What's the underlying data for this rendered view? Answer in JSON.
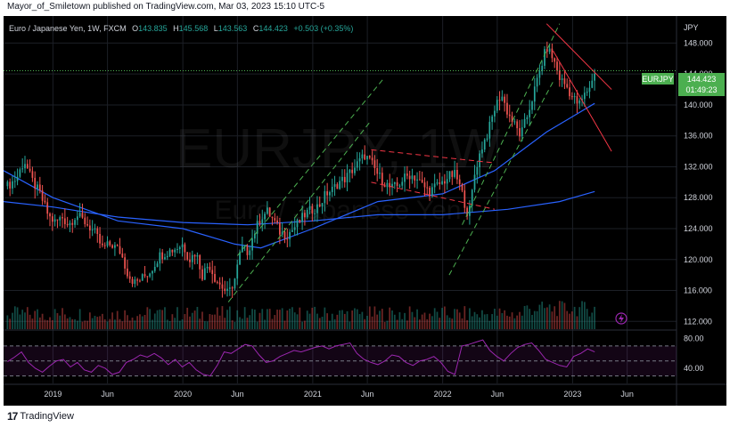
{
  "header": {
    "publisher": "Mayor_of_Smiletown published on TradingView.com, Mar 03, 2023 15:10 UTC-5"
  },
  "symbol_bar": {
    "name": "Euro / Japanese Yen, 1W, FXCM",
    "open_label": "O",
    "open": "143.835",
    "high_label": "H",
    "high": "145.568",
    "low_label": "L",
    "low": "143.563",
    "close_label": "C",
    "close": "144.423",
    "change": "+0.503 (+0.35%)"
  },
  "watermark": {
    "ticker": "EURJPY, 1W",
    "name": "Euro / Japanese Yen"
  },
  "price_badge": {
    "symbol": "EURJPY",
    "price": "144.423",
    "countdown": "01:49:23"
  },
  "footer": {
    "logo": "17",
    "brand": "TradingView"
  },
  "colors": {
    "up": "#26a69a",
    "down": "#ef5350",
    "ma": "#2962ff",
    "rsi": "#9c27b0",
    "channel_up": "#4caf50",
    "channel_down": "#f23645",
    "badge": "#4caf50"
  },
  "chart_data": {
    "type": "candlestick",
    "price_axis_label": "JPY",
    "y_ticks": [
      "148.000",
      "144.000",
      "140.000",
      "136.000",
      "132.000",
      "128.000",
      "124.000",
      "120.000",
      "116.000",
      "112.000"
    ],
    "ylim": [
      111,
      151.5
    ],
    "x_ticks": [
      {
        "label": "2019",
        "t": 2019.0
      },
      {
        "label": "Jun",
        "t": 2019.42
      },
      {
        "label": "2020",
        "t": 2020.0
      },
      {
        "label": "Jun",
        "t": 2020.42
      },
      {
        "label": "2021",
        "t": 2021.0
      },
      {
        "label": "Jun",
        "t": 2021.42
      },
      {
        "label": "2022",
        "t": 2022.0
      },
      {
        "label": "Jun",
        "t": 2022.42
      },
      {
        "label": "2023",
        "t": 2023.0
      },
      {
        "label": "Jun",
        "t": 2023.42
      }
    ],
    "xlim": [
      2018.62,
      2023.8
    ],
    "weekly_closes": [
      {
        "t": 2018.65,
        "close": 129.5
      },
      {
        "t": 2018.72,
        "close": 130.5
      },
      {
        "t": 2018.78,
        "close": 132.8
      },
      {
        "t": 2018.83,
        "close": 130.5
      },
      {
        "t": 2018.9,
        "close": 128.5
      },
      {
        "t": 2018.97,
        "close": 125.5
      },
      {
        "t": 2019.02,
        "close": 124.8
      },
      {
        "t": 2019.07,
        "close": 125.5
      },
      {
        "t": 2019.12,
        "close": 124.5
      },
      {
        "t": 2019.18,
        "close": 125.8
      },
      {
        "t": 2019.25,
        "close": 124.8
      },
      {
        "t": 2019.32,
        "close": 123.5
      },
      {
        "t": 2019.38,
        "close": 121.5
      },
      {
        "t": 2019.45,
        "close": 122.0
      },
      {
        "t": 2019.52,
        "close": 121.0
      },
      {
        "t": 2019.58,
        "close": 118.0
      },
      {
        "t": 2019.63,
        "close": 117.0
      },
      {
        "t": 2019.68,
        "close": 117.5
      },
      {
        "t": 2019.75,
        "close": 118.5
      },
      {
        "t": 2019.82,
        "close": 120.5
      },
      {
        "t": 2019.88,
        "close": 121.0
      },
      {
        "t": 2019.95,
        "close": 121.5
      },
      {
        "t": 2020.0,
        "close": 122.0
      },
      {
        "t": 2020.05,
        "close": 120.0
      },
      {
        "t": 2020.1,
        "close": 121.0
      },
      {
        "t": 2020.15,
        "close": 118.0
      },
      {
        "t": 2020.2,
        "close": 119.5
      },
      {
        "t": 2020.25,
        "close": 117.5
      },
      {
        "t": 2020.3,
        "close": 116.5
      },
      {
        "t": 2020.35,
        "close": 115.5
      },
      {
        "t": 2020.4,
        "close": 117.5
      },
      {
        "t": 2020.45,
        "close": 121.5
      },
      {
        "t": 2020.5,
        "close": 121.0
      },
      {
        "t": 2020.55,
        "close": 123.5
      },
      {
        "t": 2020.6,
        "close": 125.5
      },
      {
        "t": 2020.65,
        "close": 126.2
      },
      {
        "t": 2020.7,
        "close": 125.0
      },
      {
        "t": 2020.75,
        "close": 123.5
      },
      {
        "t": 2020.8,
        "close": 123.2
      },
      {
        "t": 2020.85,
        "close": 124.0
      },
      {
        "t": 2020.9,
        "close": 125.0
      },
      {
        "t": 2020.95,
        "close": 126.0
      },
      {
        "t": 2021.0,
        "close": 126.5
      },
      {
        "t": 2021.05,
        "close": 127.0
      },
      {
        "t": 2021.1,
        "close": 128.5
      },
      {
        "t": 2021.15,
        "close": 129.0
      },
      {
        "t": 2021.2,
        "close": 130.0
      },
      {
        "t": 2021.25,
        "close": 130.5
      },
      {
        "t": 2021.3,
        "close": 131.5
      },
      {
        "t": 2021.35,
        "close": 132.5
      },
      {
        "t": 2021.4,
        "close": 133.5
      },
      {
        "t": 2021.45,
        "close": 132.5
      },
      {
        "t": 2021.5,
        "close": 131.0
      },
      {
        "t": 2021.55,
        "close": 130.0
      },
      {
        "t": 2021.6,
        "close": 129.2
      },
      {
        "t": 2021.65,
        "close": 129.5
      },
      {
        "t": 2021.7,
        "close": 130.5
      },
      {
        "t": 2021.75,
        "close": 131.0
      },
      {
        "t": 2021.8,
        "close": 130.5
      },
      {
        "t": 2021.85,
        "close": 129.5
      },
      {
        "t": 2021.9,
        "close": 128.8
      },
      {
        "t": 2021.95,
        "close": 129.5
      },
      {
        "t": 2022.0,
        "close": 130.0
      },
      {
        "t": 2022.05,
        "close": 130.8
      },
      {
        "t": 2022.1,
        "close": 131.0
      },
      {
        "t": 2022.15,
        "close": 128.5
      },
      {
        "t": 2022.2,
        "close": 125.5
      },
      {
        "t": 2022.25,
        "close": 131.5
      },
      {
        "t": 2022.3,
        "close": 134.5
      },
      {
        "t": 2022.35,
        "close": 136.5
      },
      {
        "t": 2022.4,
        "close": 139.5
      },
      {
        "t": 2022.45,
        "close": 141.5
      },
      {
        "t": 2022.5,
        "close": 139.0
      },
      {
        "t": 2022.55,
        "close": 137.5
      },
      {
        "t": 2022.6,
        "close": 136.0
      },
      {
        "t": 2022.65,
        "close": 138.5
      },
      {
        "t": 2022.7,
        "close": 141.5
      },
      {
        "t": 2022.75,
        "close": 144.5
      },
      {
        "t": 2022.8,
        "close": 147.5
      },
      {
        "t": 2022.85,
        "close": 146.0
      },
      {
        "t": 2022.9,
        "close": 143.5
      },
      {
        "t": 2022.95,
        "close": 142.5
      },
      {
        "t": 2023.0,
        "close": 141.0
      },
      {
        "t": 2023.05,
        "close": 140.0
      },
      {
        "t": 2023.1,
        "close": 141.5
      },
      {
        "t": 2023.15,
        "close": 143.0
      },
      {
        "t": 2023.17,
        "close": 144.423
      }
    ],
    "moving_averages": [
      {
        "name": "",
        "points": [
          [
            2018.62,
            131.5
          ],
          [
            2019.0,
            128.0
          ],
          [
            2019.5,
            125.0
          ],
          [
            2020.0,
            124.0
          ],
          [
            2020.4,
            122.0
          ],
          [
            2020.6,
            121.5
          ],
          [
            2021.0,
            124.0
          ],
          [
            2021.5,
            127.5
          ],
          [
            2022.0,
            128.5
          ],
          [
            2022.4,
            131.5
          ],
          [
            2022.8,
            136.5
          ],
          [
            2023.0,
            138.5
          ],
          [
            2023.17,
            140.2
          ]
        ]
      },
      {
        "name": "",
        "points": [
          [
            2018.62,
            127.5
          ],
          [
            2019.0,
            126.8
          ],
          [
            2019.5,
            125.5
          ],
          [
            2020.0,
            124.8
          ],
          [
            2020.5,
            124.5
          ],
          [
            2021.0,
            125.0
          ],
          [
            2021.5,
            125.8
          ],
          [
            2022.0,
            125.8
          ],
          [
            2022.5,
            126.5
          ],
          [
            2022.9,
            127.5
          ],
          [
            2023.17,
            128.8
          ]
        ]
      }
    ],
    "channels": [
      {
        "color": "channel_up",
        "style": "dashed",
        "lines": [
          [
            [
              2020.35,
              114.5
            ],
            [
              2021.45,
              138.0
            ]
          ],
          [
            [
              2020.42,
              120.5
            ],
            [
              2021.55,
              143.5
            ]
          ]
        ]
      },
      {
        "color": "channel_down",
        "style": "dashed",
        "lines": [
          [
            [
              2021.45,
              134.2
            ],
            [
              2022.4,
              132.5
            ]
          ],
          [
            [
              2021.45,
              130.0
            ],
            [
              2022.4,
              126.5
            ]
          ]
        ]
      },
      {
        "color": "channel_up",
        "style": "dashed",
        "lines": [
          [
            [
              2022.15,
              124.5
            ],
            [
              2022.9,
              150.5
            ]
          ],
          [
            [
              2022.05,
              118.0
            ],
            [
              2022.85,
              143.0
            ]
          ]
        ]
      },
      {
        "color": "channel_down",
        "style": "solid",
        "lines": [
          [
            [
              2022.8,
              150.5
            ],
            [
              2023.3,
              142.0
            ]
          ],
          [
            [
              2022.85,
              147.0
            ],
            [
              2023.3,
              134.0
            ]
          ]
        ]
      }
    ],
    "current_price_line": 144.423,
    "rsi": {
      "ticks": [
        "80.00",
        "40.00"
      ],
      "ylim": [
        20,
        90
      ],
      "levels": [
        70,
        50,
        30
      ],
      "values": [
        49,
        55,
        62,
        48,
        40,
        35,
        43,
        50,
        52,
        42,
        48,
        38,
        35,
        44,
        40,
        32,
        35,
        48,
        52,
        58,
        55,
        60,
        54,
        45,
        52,
        42,
        48,
        38,
        32,
        30,
        44,
        62,
        60,
        66,
        72,
        70,
        58,
        48,
        50,
        56,
        60,
        64,
        62,
        65,
        68,
        70,
        66,
        70,
        72,
        74,
        60,
        52,
        48,
        45,
        50,
        58,
        56,
        48,
        44,
        50,
        52,
        56,
        48,
        36,
        32,
        70,
        72,
        75,
        78,
        64,
        56,
        50,
        60,
        68,
        72,
        74,
        64,
        52,
        48,
        44,
        42,
        56,
        60,
        66,
        62
      ]
    }
  }
}
